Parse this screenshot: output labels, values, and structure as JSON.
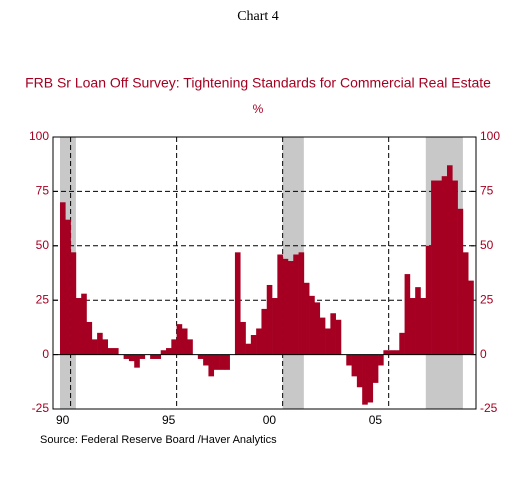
{
  "chart_data": {
    "type": "bar",
    "heading": "Chart 4",
    "title": "FRB Sr Loan Off Survey: Tightening Standards for Commercial Real Estate",
    "subtitle": "%",
    "source": "Source:  Federal Reserve Board /Haver Analytics",
    "categories": [
      "90",
      null,
      null,
      null,
      null,
      null,
      null,
      null,
      null,
      null,
      null,
      null,
      null,
      null,
      null,
      null,
      null,
      null,
      null,
      null,
      "95",
      null,
      null,
      null,
      null,
      null,
      null,
      null,
      null,
      null,
      null,
      null,
      null,
      null,
      null,
      null,
      null,
      null,
      null,
      "00",
      null,
      null,
      null,
      null,
      null,
      null,
      null,
      null,
      null,
      null,
      null,
      null,
      null,
      null,
      null,
      null,
      null,
      null,
      null,
      "05",
      null,
      null,
      null,
      null,
      null,
      null,
      null,
      null,
      null,
      null,
      null,
      null,
      null,
      null,
      null,
      null,
      null,
      null
    ],
    "values": [
      70,
      62,
      47,
      26,
      28,
      15,
      7,
      10,
      7,
      3,
      3,
      0,
      -2,
      -3,
      -6,
      -2,
      0,
      -2,
      -2,
      2,
      3,
      7,
      14,
      12,
      7,
      0,
      -2,
      -5,
      -10,
      -7,
      -7,
      -7,
      0,
      47,
      15,
      5,
      9,
      12,
      21,
      32,
      26,
      46,
      44,
      43,
      46,
      47,
      33,
      27,
      24,
      17,
      12,
      19,
      16,
      0,
      -5,
      -10,
      -15,
      -23,
      -22,
      -13,
      -5,
      2,
      2,
      2,
      10,
      37,
      26,
      31,
      26,
      50,
      80,
      80,
      82,
      87,
      80,
      67,
      47,
      34
    ],
    "color": "#a50021",
    "shading_color": "#c8c8c8",
    "recessions": [
      [
        0,
        2
      ],
      [
        42,
        45
      ],
      [
        69,
        75
      ]
    ],
    "xgrid_before": [
      2,
      22,
      42,
      62
    ],
    "ylim": [
      -25,
      100
    ],
    "yticks": [
      -25,
      0,
      25,
      50,
      75,
      100
    ],
    "grid": true
  }
}
